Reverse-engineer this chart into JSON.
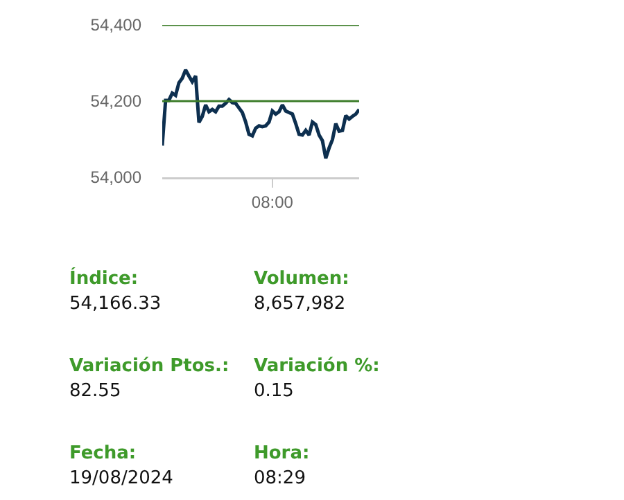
{
  "chart_data": [
    {
      "type": "line",
      "categories": [
        null,
        null,
        null,
        null,
        null,
        null,
        null,
        null,
        null,
        null,
        null,
        null,
        null,
        null,
        null,
        null,
        null,
        null,
        null,
        null,
        null,
        null,
        null,
        null,
        null,
        null,
        null,
        null,
        null,
        null,
        null,
        null,
        null,
        "08:00",
        null,
        null,
        null,
        null,
        null,
        null,
        null,
        null,
        null,
        null,
        null,
        null,
        null,
        null,
        null,
        null,
        null,
        null,
        null,
        null,
        null,
        null,
        null,
        null,
        null,
        null
      ],
      "series": [
        {
          "color": "#0d2f4f",
          "values": [
            54083,
            54202,
            54202,
            54221,
            54215,
            54248,
            54260,
            54282,
            54266,
            54251,
            54266,
            54144,
            54160,
            54190,
            54172,
            54178,
            54172,
            54187,
            54187,
            54194,
            54204,
            54196,
            54194,
            54182,
            54170,
            54145,
            54113,
            54109,
            54129,
            54135,
            54133,
            54135,
            54145,
            54174,
            54166,
            54172,
            54190,
            54174,
            54170,
            54166,
            54141,
            54113,
            54111,
            54123,
            54111,
            54145,
            54138,
            54111,
            54096,
            54050,
            54077,
            54099,
            54141,
            54121,
            54123,
            54162,
            54153,
            54160,
            54166,
            54178
          ]
        }
      ],
      "ylim": [
        54000,
        54400
      ],
      "yticks": [
        {
          "value": 54000,
          "label": "54,000"
        },
        {
          "value": 54200,
          "label": "54,200"
        },
        {
          "value": 54400,
          "label": "54,400"
        }
      ],
      "ref_lines": [
        {
          "axis": "y",
          "value": 54400,
          "color": "#3d7d2a"
        },
        {
          "axis": "y",
          "value": 54200,
          "color": "#3d7d2a"
        }
      ],
      "grid": false,
      "legend": false,
      "marker": "none",
      "line_style": "solid"
    },
    {
      "type": "other",
      "annotations": [
        "Índice:",
        "54,166.33",
        "Volumen:",
        "8,657,982",
        "Variación Ptos.:",
        "82.55",
        "Variación %:",
        "0.15",
        "Fecha:",
        "19/08/2024",
        "Hora:",
        "08:29"
      ]
    }
  ]
}
